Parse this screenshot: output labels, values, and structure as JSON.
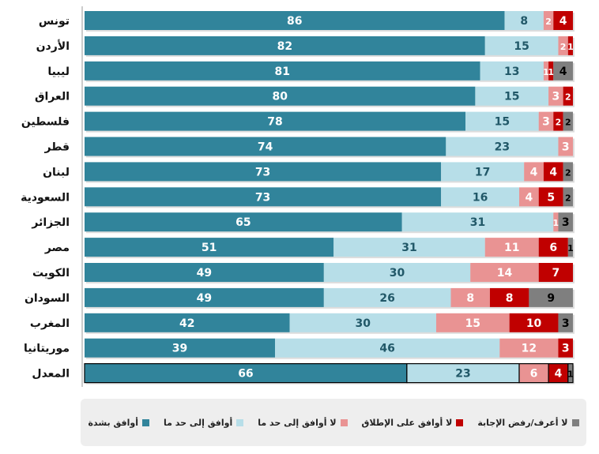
{
  "chart_data": {
    "type": "bar",
    "orientation": "horizontal",
    "stacked": true,
    "categories": [
      "تونس",
      "الأردن",
      "ليبيا",
      "العراق",
      "فلسطين",
      "قطر",
      "لبنان",
      "السعودية",
      "الجزائر",
      "مصر",
      "الكويت",
      "السودان",
      "المغرب",
      "موريتانيا",
      "المعدل"
    ],
    "series": [
      {
        "name": "أوافق بشدة",
        "color": "#31849b",
        "label_color": "#ffffff",
        "values": [
          86,
          82,
          81,
          80,
          78,
          74,
          73,
          73,
          65,
          51,
          49,
          49,
          42,
          39,
          66
        ]
      },
      {
        "name": "أوافق إلى حد ما",
        "color": "#b7dee8",
        "label_color": "#215868",
        "values": [
          8,
          15,
          13,
          15,
          15,
          23,
          17,
          16,
          31,
          31,
          30,
          26,
          30,
          46,
          23
        ]
      },
      {
        "name": "لا أوافق إلى حد ما",
        "color": "#e99393",
        "label_color": "#ffffff",
        "values": [
          2,
          2,
          1,
          3,
          3,
          3,
          4,
          4,
          1,
          11,
          14,
          8,
          15,
          12,
          6
        ]
      },
      {
        "name": "لا أوافق على الإطلاق",
        "color": "#c00000",
        "label_color": "#ffffff",
        "values": [
          4,
          1,
          1,
          2,
          2,
          0,
          4,
          5,
          0,
          6,
          7,
          8,
          10,
          3,
          4
        ]
      },
      {
        "name": "لا أعرف/رفض الإجابة",
        "color": "#7f7f7f",
        "label_color": "#000000",
        "values": [
          0,
          0,
          4,
          0,
          2,
          0,
          2,
          2,
          3,
          1,
          0,
          9,
          3,
          0,
          1
        ]
      }
    ],
    "xlim": [
      0,
      100
    ],
    "legend": "bottom"
  }
}
